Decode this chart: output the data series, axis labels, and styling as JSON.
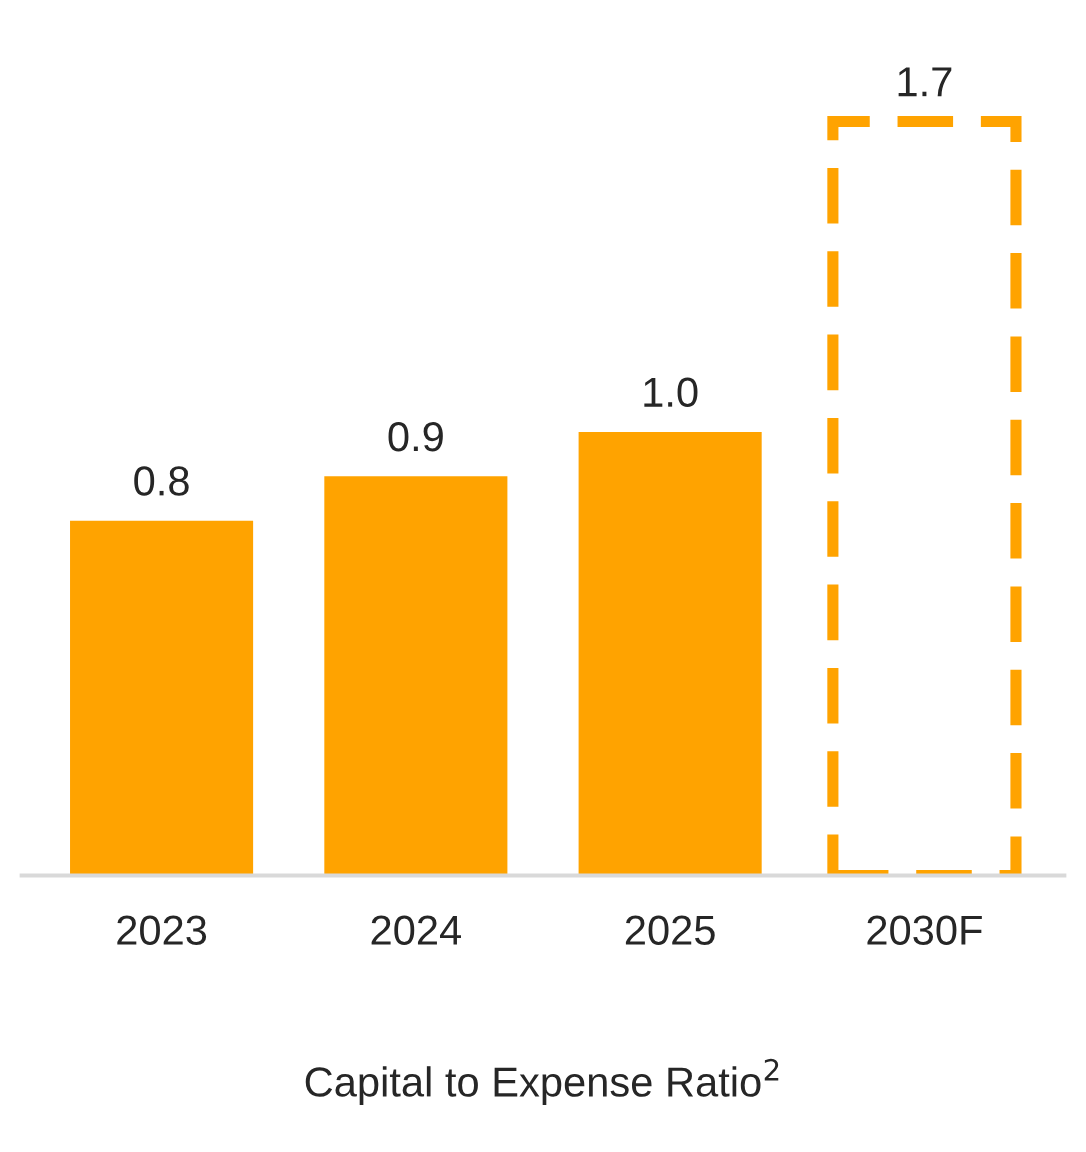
{
  "chart_data": {
    "type": "bar",
    "xlabel": "Capital to Expense Ratio$^{2}$",
    "categories": [
      "2023",
      "2024",
      "2025",
      "2030F"
    ],
    "series": [
      {
        "color": "#ffa300",
        "values": [
          0.8,
          0.9,
          1.0,
          null
        ],
        "value_labels": [
          "0.8",
          "0.9",
          "1.0",
          null
        ]
      },
      {
        "color": "#ffa300",
        "values": [
          null,
          null,
          null,
          1.7
        ],
        "value_labels": [
          null,
          null,
          null,
          "1.7"
        ],
        "line_style": "dashed"
      }
    ],
    "grid": false,
    "legend": false
  }
}
